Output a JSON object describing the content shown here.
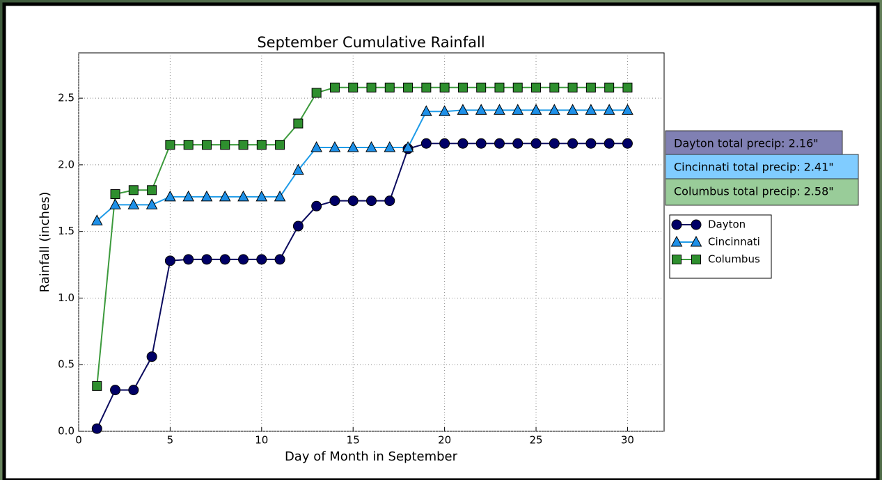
{
  "chart_data": {
    "type": "line",
    "title": "September Cumulative Rainfall",
    "x_label": "Day of Month in September",
    "y_label": "Rainfall (inches)",
    "x": [
      1,
      2,
      3,
      4,
      5,
      6,
      7,
      8,
      9,
      10,
      11,
      12,
      13,
      14,
      15,
      16,
      17,
      18,
      19,
      20,
      21,
      22,
      23,
      24,
      25,
      26,
      27,
      28,
      29,
      30
    ],
    "series": [
      {
        "name": "Dayton",
        "color": "#000066",
        "line_color": "#0b0b5e",
        "marker": "circle",
        "values": [
          0.02,
          0.31,
          0.31,
          0.56,
          1.28,
          1.29,
          1.29,
          1.29,
          1.29,
          1.29,
          1.29,
          1.54,
          1.69,
          1.73,
          1.73,
          1.73,
          1.73,
          2.12,
          2.16,
          2.16,
          2.16,
          2.16,
          2.16,
          2.16,
          2.16,
          2.16,
          2.16,
          2.16,
          2.16,
          2.16
        ]
      },
      {
        "name": "Cincinnati",
        "color": "#1e90e8",
        "line_color": "#1f9be8",
        "marker": "triangle",
        "values": [
          1.58,
          1.7,
          1.7,
          1.7,
          1.76,
          1.76,
          1.76,
          1.76,
          1.76,
          1.76,
          1.76,
          1.96,
          2.13,
          2.13,
          2.13,
          2.13,
          2.13,
          2.13,
          2.4,
          2.4,
          2.41,
          2.41,
          2.41,
          2.41,
          2.41,
          2.41,
          2.41,
          2.41,
          2.41,
          2.41
        ]
      },
      {
        "name": "Columbus",
        "color": "#2e8f2e",
        "line_color": "#3c9a3c",
        "marker": "square",
        "values": [
          0.34,
          1.78,
          1.81,
          1.81,
          2.15,
          2.15,
          2.15,
          2.15,
          2.15,
          2.15,
          2.15,
          2.31,
          2.54,
          2.58,
          2.58,
          2.58,
          2.58,
          2.58,
          2.58,
          2.58,
          2.58,
          2.58,
          2.58,
          2.58,
          2.58,
          2.58,
          2.58,
          2.58,
          2.58,
          2.58
        ]
      }
    ],
    "xlim": [
      0,
      32
    ],
    "ylim": [
      0,
      2.84
    ],
    "xticks": [
      0,
      5,
      10,
      15,
      20,
      25,
      30
    ],
    "yticks": [
      {
        "value": 0,
        "label": "0.0"
      },
      0.5,
      {
        "value": 1,
        "label": "1.0"
      },
      1.5,
      {
        "value": 2,
        "label": "2.0"
      },
      2.5
    ],
    "grid": true,
    "legend": "center right",
    "annotations": [
      {
        "text": "Dayton total precip: 2.16\"",
        "color": "#8080b3"
      },
      {
        "text": "Cincinnati total precip: 2.41\"",
        "color": "#80ccff"
      },
      {
        "text": "Columbus total precip: 2.58\"",
        "color": "#99cc99"
      }
    ]
  }
}
